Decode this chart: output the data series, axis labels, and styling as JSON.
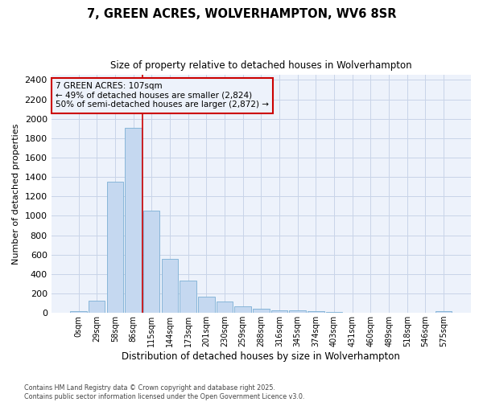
{
  "title_line1": "7, GREEN ACRES, WOLVERHAMPTON, WV6 8SR",
  "title_line2": "Size of property relative to detached houses in Wolverhampton",
  "xlabel": "Distribution of detached houses by size in Wolverhampton",
  "ylabel": "Number of detached properties",
  "annotation_text": "7 GREEN ACRES: 107sqm\n← 49% of detached houses are smaller (2,824)\n50% of semi-detached houses are larger (2,872) →",
  "footer_text": "Contains HM Land Registry data © Crown copyright and database right 2025.\nContains public sector information licensed under the Open Government Licence v3.0.",
  "categories": [
    "0sqm",
    "29sqm",
    "58sqm",
    "86sqm",
    "115sqm",
    "144sqm",
    "173sqm",
    "201sqm",
    "230sqm",
    "259sqm",
    "288sqm",
    "316sqm",
    "345sqm",
    "374sqm",
    "403sqm",
    "431sqm",
    "460sqm",
    "489sqm",
    "518sqm",
    "546sqm",
    "575sqm"
  ],
  "values": [
    15,
    125,
    1355,
    1910,
    1055,
    560,
    335,
    170,
    120,
    65,
    40,
    30,
    25,
    20,
    10,
    5,
    3,
    2,
    1,
    1,
    15
  ],
  "bar_color": "#c5d8f0",
  "bar_edge_color": "#7bafd4",
  "grid_color": "#c8d4e8",
  "bg_color": "#ffffff",
  "plot_bg_color": "#edf2fb",
  "red_line_color": "#cc0000",
  "annotation_box_edge_color": "#cc0000",
  "ylim": [
    0,
    2450
  ],
  "yticks": [
    0,
    200,
    400,
    600,
    800,
    1000,
    1200,
    1400,
    1600,
    1800,
    2000,
    2200,
    2400
  ],
  "red_line_index": 3.5
}
